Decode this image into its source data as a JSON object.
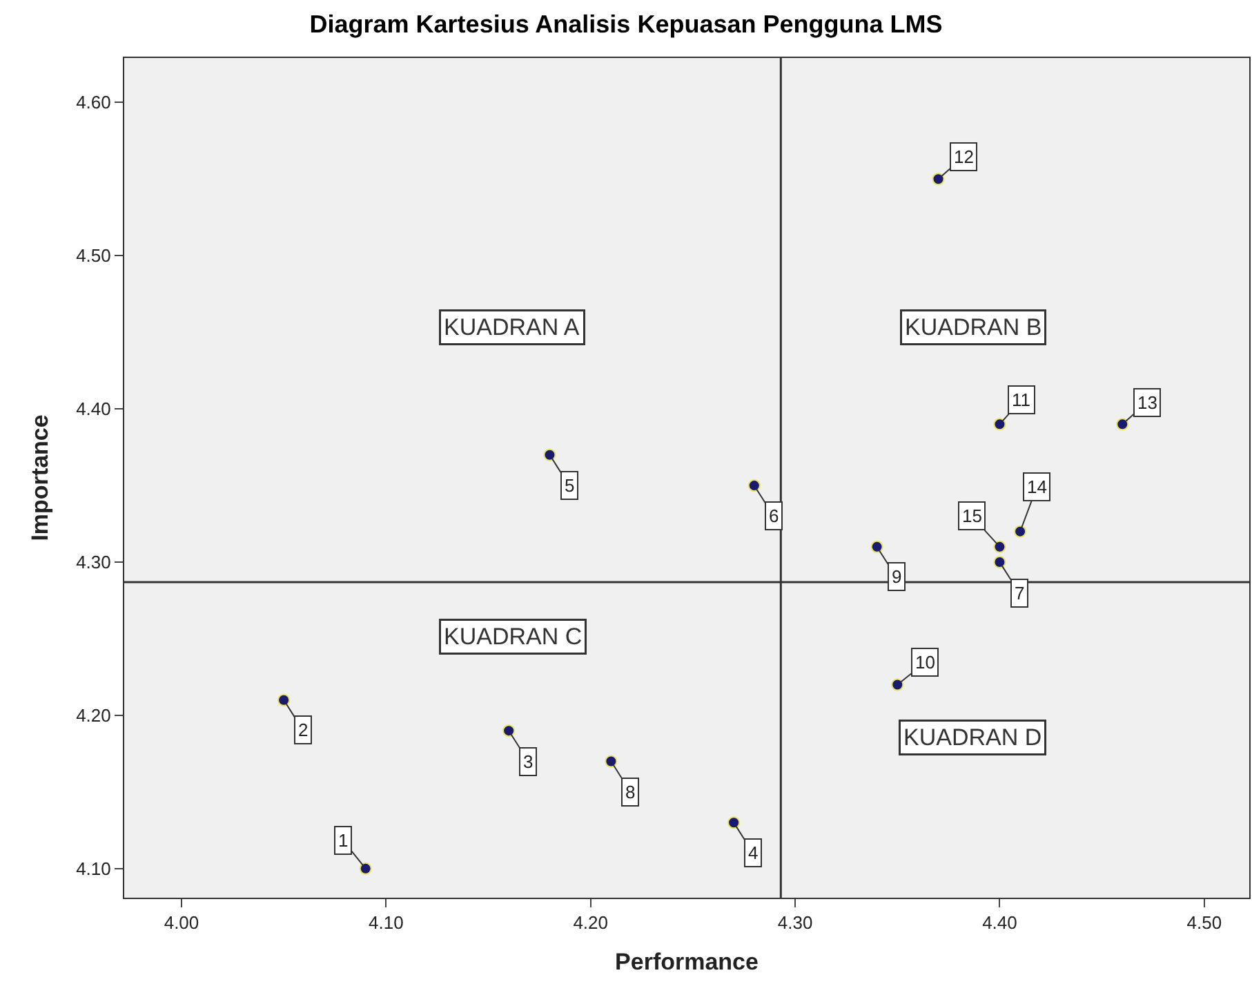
{
  "chart_data": {
    "type": "scatter",
    "title": "Diagram Kartesius Analisis Kepuasan Pengguna LMS",
    "xlabel": "Performance",
    "ylabel": "Importance",
    "x": [
      4.09,
      4.05,
      4.16,
      4.27,
      4.18,
      4.28,
      4.4,
      4.21,
      4.34,
      4.35,
      4.4,
      4.37,
      4.46,
      4.41,
      4.4
    ],
    "series": [
      {
        "color": "#1a1a6e",
        "values": [
          4.1,
          4.21,
          4.19,
          4.13,
          4.37,
          4.35,
          4.3,
          4.17,
          4.31,
          4.22,
          4.39,
          4.55,
          4.39,
          4.32,
          4.31
        ]
      }
    ],
    "xlim": [
      3.972,
      4.522
    ],
    "ylim": [
      4.081,
      4.629
    ],
    "xticks": [
      {
        "value": 4.0,
        "label": "4.00"
      },
      {
        "value": 4.1,
        "label": "4.10"
      },
      {
        "value": 4.2,
        "label": "4.20"
      },
      {
        "value": 4.3,
        "label": "4.30"
      },
      {
        "value": 4.4,
        "label": "4.40"
      },
      {
        "value": 4.5,
        "label": "4.50"
      }
    ],
    "yticks": [
      {
        "value": 4.1,
        "label": "4.10"
      },
      {
        "value": 4.2,
        "label": "4.20"
      },
      {
        "value": 4.3,
        "label": "4.30"
      },
      {
        "value": 4.4,
        "label": "4.40"
      },
      {
        "value": 4.5,
        "label": "4.50"
      },
      {
        "value": 4.6,
        "label": "4.60"
      }
    ],
    "ref_lines": [
      {
        "axis": "x",
        "value": 4.293,
        "color": "#333333"
      },
      {
        "axis": "y",
        "value": 4.287,
        "color": "#333333"
      }
    ],
    "annotations": [
      {
        "text": "1",
        "x": 4.09,
        "y": 4.1
      },
      {
        "text": "2",
        "x": 4.05,
        "y": 4.21
      },
      {
        "text": "3",
        "x": 4.16,
        "y": 4.19
      },
      {
        "text": "4",
        "x": 4.27,
        "y": 4.13
      },
      {
        "text": "5",
        "x": 4.18,
        "y": 4.37
      },
      {
        "text": "6",
        "x": 4.28,
        "y": 4.35
      },
      {
        "text": "7",
        "x": 4.4,
        "y": 4.3
      },
      {
        "text": "8",
        "x": 4.21,
        "y": 4.17
      },
      {
        "text": "9",
        "x": 4.34,
        "y": 4.31
      },
      {
        "text": "10",
        "x": 4.35,
        "y": 4.22
      },
      {
        "text": "11",
        "x": 4.4,
        "y": 4.39
      },
      {
        "text": "12",
        "x": 4.37,
        "y": 4.55
      },
      {
        "text": "13",
        "x": 4.46,
        "y": 4.39
      },
      {
        "text": "14",
        "x": 4.41,
        "y": 4.32
      },
      {
        "text": "15",
        "x": 4.4,
        "y": 4.31
      },
      "KUADRAN A",
      "KUADRAN B",
      "KUADRAN C",
      "KUADRAN D"
    ],
    "marker": "circle",
    "grid": false
  }
}
